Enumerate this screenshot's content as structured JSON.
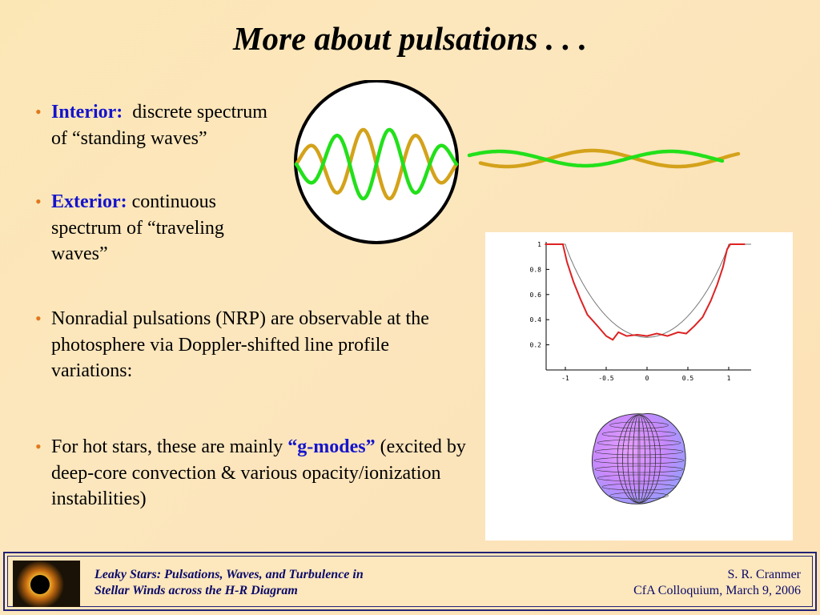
{
  "title": "More about pulsations . . .",
  "bullets": [
    {
      "keyword": "Interior:",
      "text": "  discrete spectrum of “standing waves”"
    },
    {
      "keyword": "Exterior:",
      "text": " continuous spectrum of “traveling waves”"
    },
    {
      "text": "Nonradial pulsations (NRP) are observable at the photosphere via Doppler-shifted line profile variations:"
    },
    {
      "text_before": "For hot stars, these are mainly ",
      "keyword": "“g-modes”",
      "text_after": " (excited by deep-core convection & various opacity/ionization instabilities)"
    }
  ],
  "bullet_symbol": "•",
  "colors": {
    "keyword": "#1414cc",
    "bullet": "#e0781b",
    "wave_green": "#22e01a",
    "wave_gold": "#d4a21a",
    "model_line": "#dd2222"
  },
  "plot": {
    "x_ticks": [
      "-1",
      "-0.5",
      "0",
      "0.5",
      "1"
    ],
    "y_ticks": [
      "1",
      "0.8",
      "0.6",
      "0.4",
      "0.2"
    ]
  },
  "footer": {
    "left_line1": "Leaky Stars:  Pulsations, Waves, and Turbulence in",
    "left_line2": "Stellar Winds across the H-R Diagram",
    "right_line1": "S. R. Cranmer",
    "right_line2": "CfA Colloquium,  March 9, 2006"
  }
}
